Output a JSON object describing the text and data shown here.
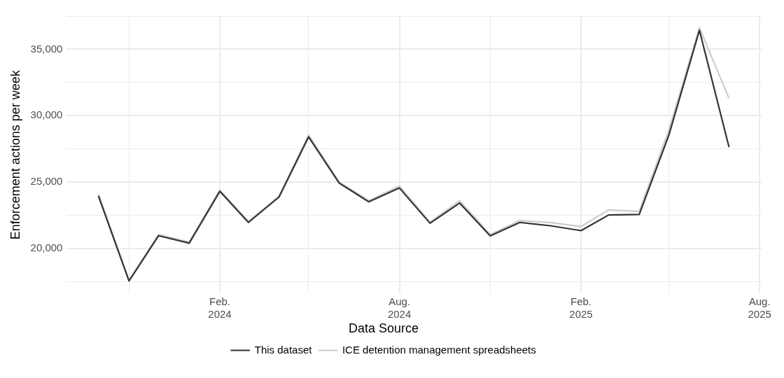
{
  "chart_data": {
    "type": "line",
    "ylabel": "Enforcement actions per week",
    "legend_title": "Data Source",
    "legend": "bottom",
    "grid": true,
    "marker": "none",
    "line_style": "solid",
    "x": [
      "2023-10-01",
      "2023-11-01",
      "2023-12-01",
      "2024-01-01",
      "2024-02-01",
      "2024-03-01",
      "2024-04-01",
      "2024-05-01",
      "2024-06-01",
      "2024-07-01",
      "2024-08-01",
      "2024-09-01",
      "2024-10-01",
      "2024-11-01",
      "2024-12-01",
      "2025-01-01",
      "2025-02-01",
      "2025-03-01",
      "2025-04-01",
      "2025-05-01",
      "2025-06-01",
      "2025-07-01"
    ],
    "xlim": [
      "2023-08-30",
      "2025-08-03"
    ],
    "xticks": [
      {
        "value": "2023-11-01",
        "label": null
      },
      {
        "value": "2024-02-01",
        "label": "Feb.\n2024"
      },
      {
        "value": "2024-05-01",
        "label": null
      },
      {
        "value": "2024-08-01",
        "label": "Aug.\n2024"
      },
      {
        "value": "2024-11-01",
        "label": null
      },
      {
        "value": "2025-02-01",
        "label": "Feb.\n2025"
      },
      {
        "value": "2025-05-01",
        "label": null
      },
      {
        "value": "2025-08-01",
        "label": "Aug.\n2025"
      }
    ],
    "ylim": [
      16600,
      37500
    ],
    "yticks": [
      {
        "value": 17500,
        "label": null
      },
      {
        "value": 20000,
        "label": "20,000"
      },
      {
        "value": 22500,
        "label": null
      },
      {
        "value": 25000,
        "label": "25,000"
      },
      {
        "value": 27500,
        "label": null
      },
      {
        "value": 30000,
        "label": "30,000"
      },
      {
        "value": 32500,
        "label": null
      },
      {
        "value": 35000,
        "label": "35,000"
      },
      {
        "value": 37500,
        "label": null
      }
    ],
    "series": [
      {
        "name": "This dataset",
        "color": "#333333",
        "values": [
          23950,
          17550,
          20960,
          20400,
          24300,
          21960,
          23870,
          28400,
          24920,
          23510,
          24550,
          21900,
          23420,
          20950,
          21960,
          21710,
          21340,
          22520,
          22560,
          28530,
          36430,
          27630
        ]
      },
      {
        "name": "ICE detention management spreadsheets",
        "color": "#cccccc",
        "values": [
          24100,
          17600,
          21050,
          20480,
          24400,
          22050,
          23950,
          28550,
          25000,
          23600,
          24700,
          21980,
          23600,
          21050,
          22100,
          21950,
          21650,
          22900,
          22800,
          28900,
          36620,
          31300
        ]
      }
    ]
  }
}
